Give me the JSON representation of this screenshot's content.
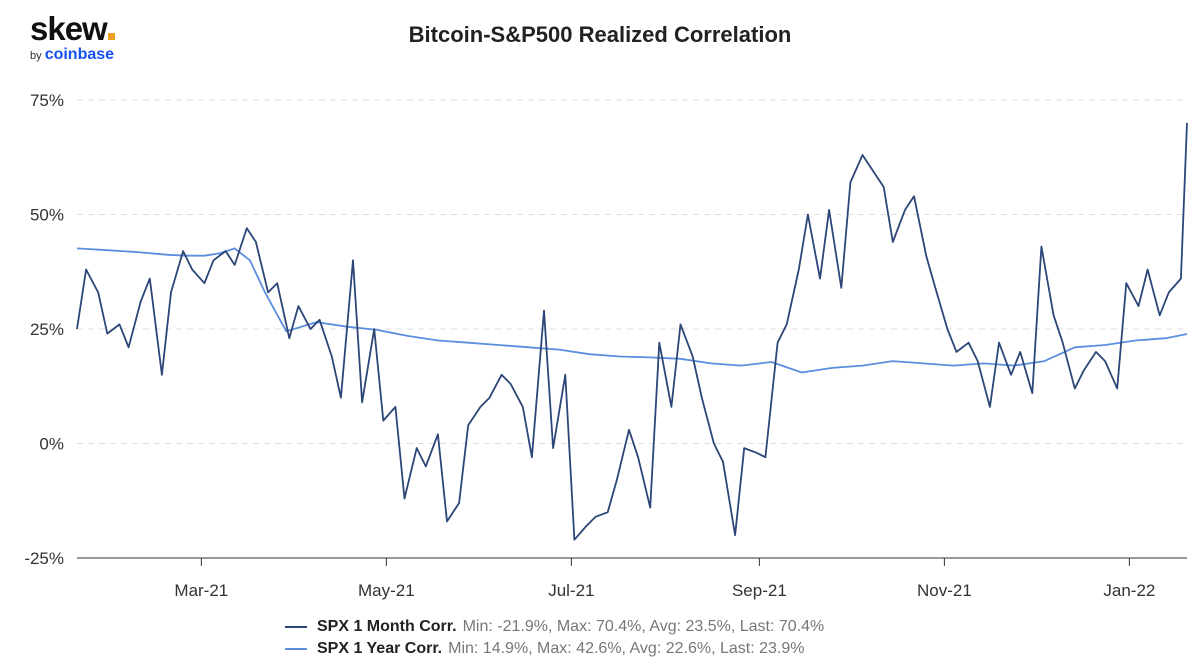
{
  "logo": {
    "brand": "skew",
    "by": "by",
    "company": "coinbase"
  },
  "chart_data": {
    "type": "line",
    "title": "Bitcoin-S&P500 Realized Correlation",
    "y_ticks": [
      "75%",
      "50%",
      "25%",
      "0%",
      "-25%"
    ],
    "y_tick_values": [
      75,
      50,
      25,
      0,
      -25
    ],
    "ylim": [
      -25,
      75
    ],
    "x_ticks": [
      "Mar-21",
      "May-21",
      "Jul-21",
      "Sep-21",
      "Nov-21",
      "Jan-22"
    ],
    "x_tick_dates": [
      "2021-03-01",
      "2021-05-01",
      "2021-07-01",
      "2021-09-01",
      "2021-11-01",
      "2022-01-01"
    ],
    "xlim": [
      "2021-01-19",
      "2022-01-20"
    ],
    "grid": "horizontal dashed",
    "legend_position": "bottom",
    "series": [
      {
        "name": "SPX 1 Month Corr.",
        "stats": "Min: -21.9%, Max: 70.4%, Avg: 23.5%, Last: 70.4%",
        "color": "#2b4677",
        "x": [
          "2021-01-19",
          "2021-01-22",
          "2021-01-26",
          "2021-01-29",
          "2021-02-02",
          "2021-02-05",
          "2021-02-09",
          "2021-02-12",
          "2021-02-16",
          "2021-02-19",
          "2021-02-23",
          "2021-02-26",
          "2021-03-02",
          "2021-03-05",
          "2021-03-09",
          "2021-03-12",
          "2021-03-16",
          "2021-03-19",
          "2021-03-23",
          "2021-03-26",
          "2021-03-30",
          "2021-04-02",
          "2021-04-06",
          "2021-04-09",
          "2021-04-13",
          "2021-04-16",
          "2021-04-20",
          "2021-04-23",
          "2021-04-27",
          "2021-04-30",
          "2021-05-04",
          "2021-05-07",
          "2021-05-11",
          "2021-05-14",
          "2021-05-18",
          "2021-05-21",
          "2021-05-25",
          "2021-05-28",
          "2021-06-01",
          "2021-06-04",
          "2021-06-08",
          "2021-06-11",
          "2021-06-15",
          "2021-06-18",
          "2021-06-22",
          "2021-06-25",
          "2021-06-29",
          "2021-07-02",
          "2021-07-06",
          "2021-07-09",
          "2021-07-13",
          "2021-07-16",
          "2021-07-20",
          "2021-07-23",
          "2021-07-27",
          "2021-07-30",
          "2021-08-03",
          "2021-08-06",
          "2021-08-10",
          "2021-08-13",
          "2021-08-17",
          "2021-08-20",
          "2021-08-24",
          "2021-08-27",
          "2021-08-31",
          "2021-09-03",
          "2021-09-07",
          "2021-09-10",
          "2021-09-14",
          "2021-09-17",
          "2021-09-21",
          "2021-09-24",
          "2021-09-28",
          "2021-10-01",
          "2021-10-05",
          "2021-10-08",
          "2021-10-12",
          "2021-10-15",
          "2021-10-19",
          "2021-10-22",
          "2021-10-26",
          "2021-10-29",
          "2021-11-02",
          "2021-11-05",
          "2021-11-09",
          "2021-11-12",
          "2021-11-16",
          "2021-11-19",
          "2021-11-23",
          "2021-11-26",
          "2021-11-30",
          "2021-12-03",
          "2021-12-07",
          "2021-12-10",
          "2021-12-14",
          "2021-12-17",
          "2021-12-21",
          "2021-12-24",
          "2021-12-28",
          "2021-12-31",
          "2022-01-04",
          "2022-01-07",
          "2022-01-11",
          "2022-01-14",
          "2022-01-18",
          "2022-01-20"
        ],
        "values": [
          25,
          38,
          33,
          24,
          26,
          21,
          31,
          36,
          15,
          33,
          42,
          38,
          35,
          40,
          42,
          39,
          47,
          44,
          33,
          35,
          23,
          30,
          25,
          27,
          19,
          10,
          40,
          9,
          25,
          5,
          8,
          -12,
          -1,
          -5,
          2,
          -17,
          -13,
          4,
          8,
          10,
          15,
          13,
          8,
          -3,
          29,
          -1,
          15,
          -21,
          -18,
          -16,
          -15,
          -8,
          3,
          -3,
          -14,
          22,
          8,
          26,
          19,
          10,
          0,
          -4,
          -20,
          -1,
          -2,
          -3,
          22,
          26,
          38,
          50,
          36,
          51,
          34,
          57,
          63,
          60,
          56,
          44,
          51,
          54,
          41,
          34,
          25,
          20,
          22,
          18,
          8,
          22,
          15,
          20,
          11,
          43,
          28,
          22,
          12,
          16,
          20,
          18,
          12,
          35,
          30,
          38,
          28,
          33,
          36,
          70
        ]
      },
      {
        "name": "SPX 1 Year Corr.",
        "stats": "Min: 14.9%, Max: 42.6%, Avg: 22.6%, Last: 23.9%",
        "color": "#5b8fdd",
        "x": [
          "2021-01-19",
          "2021-01-29",
          "2021-02-08",
          "2021-02-18",
          "2021-02-24",
          "2021-03-02",
          "2021-03-07",
          "2021-03-12",
          "2021-03-17",
          "2021-03-22",
          "2021-03-29",
          "2021-04-08",
          "2021-04-18",
          "2021-04-28",
          "2021-05-08",
          "2021-05-18",
          "2021-05-28",
          "2021-06-07",
          "2021-06-17",
          "2021-06-27",
          "2021-07-07",
          "2021-07-17",
          "2021-07-27",
          "2021-08-06",
          "2021-08-16",
          "2021-08-26",
          "2021-09-05",
          "2021-09-15",
          "2021-09-25",
          "2021-10-05",
          "2021-10-15",
          "2021-10-25",
          "2021-11-04",
          "2021-11-14",
          "2021-11-24",
          "2021-12-04",
          "2021-12-14",
          "2021-12-24",
          "2022-01-03",
          "2022-01-13",
          "2022-01-20"
        ],
        "values": [
          42.6,
          42.2,
          41.8,
          41.2,
          41.0,
          41.0,
          41.5,
          42.6,
          40.0,
          33.0,
          24.5,
          26.5,
          25.5,
          24.8,
          23.5,
          22.5,
          22.0,
          21.5,
          21.0,
          20.5,
          19.5,
          19.0,
          18.8,
          18.5,
          17.5,
          17.0,
          17.8,
          15.5,
          16.5,
          17.0,
          18.0,
          17.5,
          17.0,
          17.5,
          17.0,
          18.0,
          21.0,
          21.5,
          22.5,
          23.0,
          23.9
        ]
      }
    ]
  }
}
